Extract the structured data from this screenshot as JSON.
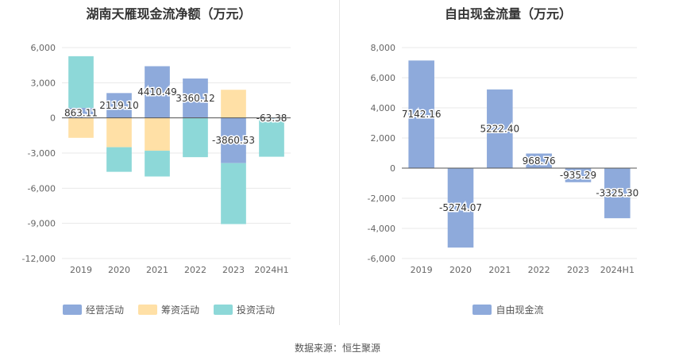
{
  "footer": "数据来源：恒生聚源",
  "chart_data": [
    {
      "type": "bar",
      "stacked": true,
      "title": "湖南天雁现金流净额（万元）",
      "categories": [
        "2019",
        "2020",
        "2021",
        "2022",
        "2023",
        "2024H1"
      ],
      "ylim": [
        -12000,
        6000
      ],
      "yticks": [
        6000,
        3000,
        0,
        -3000,
        -6000,
        -9000,
        -12000
      ],
      "ytick_labels": [
        "6,000",
        "3,000",
        "0",
        "-3,000",
        "-6,000",
        "-9,000",
        "-12,000"
      ],
      "grid": true,
      "legend_position": "bottom",
      "series": [
        {
          "name": "经营活动",
          "color": "#8eaadb",
          "values": [
            863.11,
            2119.1,
            4410.49,
            3360.12,
            -3860.53,
            -63.38
          ]
        },
        {
          "name": "筹资活动",
          "color": "#ffe0a6",
          "values": [
            -1700,
            -2500,
            -2800,
            0,
            2400,
            0
          ]
        },
        {
          "name": "投资活动",
          "color": "#8dd8d8",
          "values": [
            4400,
            -2100,
            -2200,
            -3350,
            -5200,
            -3250
          ]
        }
      ],
      "data_labels": [
        "863.11",
        "2119.10",
        "4410.49",
        "3360.12",
        "-3860.53",
        "-63.38"
      ]
    },
    {
      "type": "bar",
      "title": "自由现金流量（万元）",
      "categories": [
        "2019",
        "2020",
        "2021",
        "2022",
        "2023",
        "2024H1"
      ],
      "ylim": [
        -6000,
        8000
      ],
      "yticks": [
        8000,
        6000,
        4000,
        2000,
        0,
        -2000,
        -4000,
        -6000
      ],
      "ytick_labels": [
        "8,000",
        "6,000",
        "4,000",
        "2,000",
        "0",
        "-2,000",
        "-4,000",
        "-6,000"
      ],
      "grid": true,
      "legend_position": "bottom",
      "series": [
        {
          "name": "自由现金流",
          "color": "#8eaadb",
          "values": [
            7142.16,
            -5274.07,
            5222.4,
            968.76,
            -935.29,
            -3325.3
          ]
        }
      ],
      "data_labels": [
        "7142.16",
        "-5274.07",
        "5222.40",
        "968.76",
        "-935.29",
        "-3325.30"
      ]
    }
  ]
}
